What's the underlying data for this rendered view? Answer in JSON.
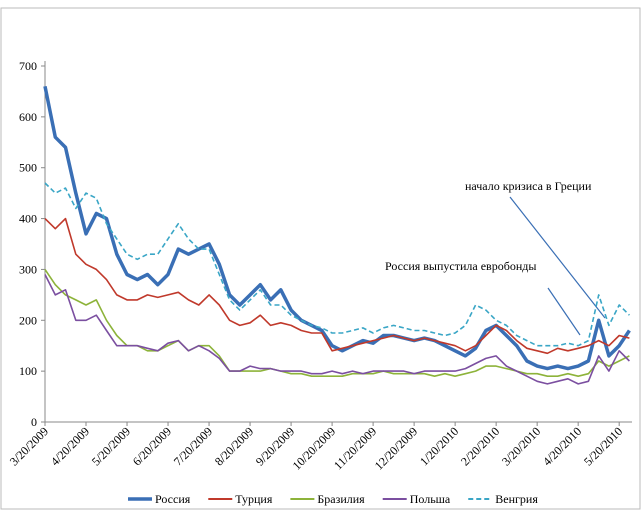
{
  "chart_data": {
    "type": "line",
    "categories": [
      "3/20/2009",
      null,
      null,
      null,
      "4/20/2009",
      null,
      null,
      null,
      "5/20/2009",
      null,
      null,
      null,
      "6/20/2009",
      null,
      null,
      null,
      "7/20/2009",
      null,
      null,
      null,
      "8/20/2009",
      null,
      null,
      null,
      "9/20/2009",
      null,
      null,
      null,
      "10/20/2009",
      null,
      null,
      null,
      "11/20/2009",
      null,
      null,
      null,
      "12/20/2009",
      null,
      null,
      null,
      "1/20/2010",
      null,
      null,
      null,
      "2/20/2010",
      null,
      null,
      null,
      "3/20/2010",
      null,
      null,
      null,
      "4/20/2010",
      null,
      null,
      null,
      "5/20/2010",
      null
    ],
    "series": [
      {
        "name": "Россия",
        "color": "#3a6fb5",
        "bold": true,
        "values": [
          660,
          560,
          540,
          450,
          370,
          410,
          400,
          330,
          290,
          280,
          290,
          270,
          290,
          340,
          330,
          340,
          350,
          310,
          250,
          230,
          250,
          270,
          240,
          260,
          220,
          200,
          190,
          180,
          150,
          140,
          150,
          160,
          155,
          170,
          170,
          165,
          160,
          165,
          160,
          150,
          140,
          130,
          145,
          180,
          190,
          170,
          150,
          120,
          110,
          105,
          110,
          105,
          110,
          120,
          200,
          130,
          150,
          180
        ]
      },
      {
        "name": "Турция",
        "color": "#c0392b",
        "values": [
          400,
          380,
          400,
          330,
          310,
          300,
          280,
          250,
          240,
          240,
          250,
          245,
          250,
          255,
          240,
          230,
          250,
          230,
          200,
          190,
          195,
          210,
          190,
          195,
          190,
          180,
          175,
          175,
          140,
          145,
          150,
          155,
          160,
          165,
          170,
          165,
          160,
          165,
          160,
          155,
          150,
          140,
          150,
          170,
          190,
          180,
          160,
          145,
          140,
          135,
          145,
          140,
          145,
          150,
          160,
          150,
          170,
          165
        ]
      },
      {
        "name": "Бразилия",
        "color": "#8db33a",
        "values": [
          300,
          270,
          250,
          240,
          230,
          240,
          200,
          170,
          150,
          150,
          140,
          140,
          150,
          160,
          140,
          150,
          150,
          130,
          100,
          100,
          100,
          100,
          105,
          100,
          95,
          95,
          90,
          90,
          90,
          90,
          95,
          95,
          95,
          100,
          95,
          95,
          95,
          95,
          90,
          95,
          90,
          95,
          100,
          110,
          110,
          105,
          100,
          95,
          95,
          90,
          90,
          95,
          90,
          95,
          120,
          110,
          120,
          130
        ]
      },
      {
        "name": "Польша",
        "color": "#7b4fa0",
        "values": [
          290,
          250,
          260,
          200,
          200,
          210,
          180,
          150,
          150,
          150,
          145,
          140,
          155,
          160,
          140,
          150,
          140,
          125,
          100,
          100,
          110,
          105,
          105,
          100,
          100,
          100,
          95,
          95,
          100,
          95,
          100,
          95,
          100,
          100,
          100,
          100,
          95,
          100,
          100,
          100,
          100,
          105,
          115,
          125,
          130,
          110,
          100,
          90,
          80,
          75,
          80,
          85,
          75,
          80,
          130,
          100,
          140,
          120
        ]
      },
      {
        "name": "Венгрия",
        "color": "#3aa6c6",
        "dashed": true,
        "values": [
          470,
          450,
          460,
          420,
          450,
          440,
          390,
          360,
          330,
          320,
          330,
          330,
          360,
          390,
          360,
          340,
          340,
          290,
          240,
          220,
          240,
          260,
          230,
          230,
          210,
          200,
          190,
          185,
          175,
          175,
          180,
          185,
          175,
          185,
          190,
          185,
          180,
          180,
          175,
          170,
          175,
          190,
          230,
          220,
          200,
          190,
          170,
          160,
          150,
          150,
          150,
          155,
          150,
          160,
          250,
          190,
          230,
          210
        ]
      }
    ],
    "ylim": [
      0,
      700
    ],
    "yticks": [
      0,
      100,
      200,
      300,
      400,
      500,
      600,
      700
    ],
    "annotations": [
      "начало кризиса в Греции",
      "Россия выпустила евробонды"
    ]
  }
}
